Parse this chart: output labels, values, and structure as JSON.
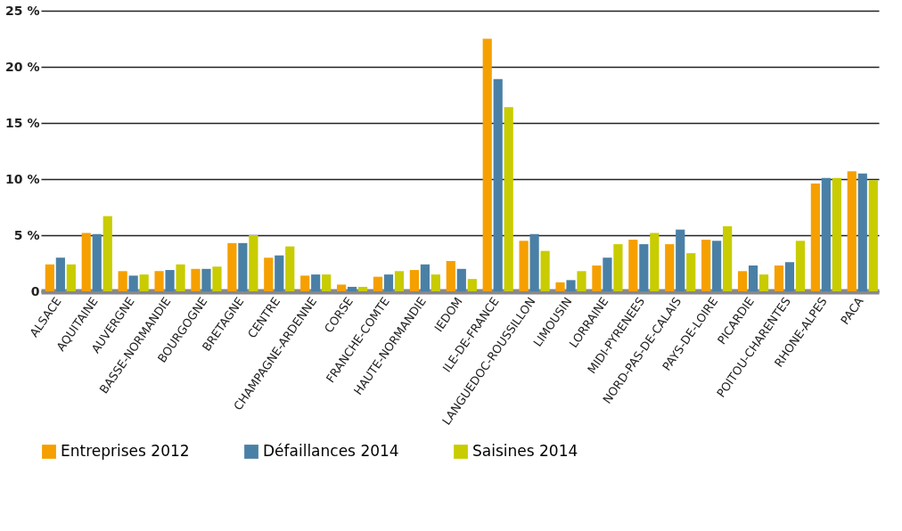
{
  "chart_data": {
    "type": "bar",
    "categories": [
      "ALSACE",
      "AQUITAINE",
      "AUVERGNE",
      "BASSE-NORMANDIE",
      "BOURGOGNE",
      "BRETAGNE",
      "CENTRE",
      "CHAMPAGNE-ARDENNE",
      "CORSE",
      "FRANCHE-COMTE",
      "HAUTE-NORMANDIE",
      "IEDOM",
      "ILE-DE-FRANCE",
      "LANGUEDOC-ROUSSILLON",
      "LIMOUSIN",
      "LORRAINE",
      "MIDI-PYRENEES",
      "NORD-PAS-DE-CALAIS",
      "PAYS-DE-LOIRE",
      "PICARDIE",
      "POITOU-CHARENTES",
      "RHONE-ALPES",
      "PACA"
    ],
    "series": [
      {
        "name": "Entreprises 2012",
        "color": "#f5a000",
        "values": [
          2.4,
          5.2,
          1.8,
          1.8,
          2.0,
          4.3,
          3.0,
          1.4,
          0.6,
          1.3,
          1.9,
          2.7,
          22.5,
          4.5,
          0.8,
          2.3,
          4.6,
          4.2,
          4.6,
          1.8,
          2.3,
          9.6,
          10.7
        ]
      },
      {
        "name": "Défaillances 2014",
        "color": "#4a80a6",
        "values": [
          3.0,
          5.1,
          1.4,
          1.9,
          2.0,
          4.3,
          3.2,
          1.5,
          0.4,
          1.5,
          2.4,
          2.0,
          18.9,
          5.1,
          1.0,
          3.0,
          4.2,
          5.5,
          4.5,
          2.3,
          2.6,
          10.1,
          10.5
        ]
      },
      {
        "name": "Saisines 2014",
        "color": "#c8cc00",
        "values": [
          2.4,
          6.7,
          1.5,
          2.4,
          2.2,
          5.0,
          4.0,
          1.5,
          0.4,
          1.8,
          1.5,
          1.1,
          16.4,
          3.6,
          1.8,
          4.2,
          5.2,
          3.4,
          5.8,
          1.5,
          4.5,
          10.1,
          9.9
        ]
      }
    ],
    "ylim": [
      0,
      25
    ],
    "yticks": [
      0,
      {
        "value": 5,
        "label": "5 %"
      },
      {
        "value": 10,
        "label": "10 %"
      },
      {
        "value": 15,
        "label": "15 %"
      },
      {
        "value": 20,
        "label": "20 %"
      },
      {
        "value": 25,
        "label": "25 %"
      }
    ],
    "grid": "y",
    "legend": "bottom"
  }
}
